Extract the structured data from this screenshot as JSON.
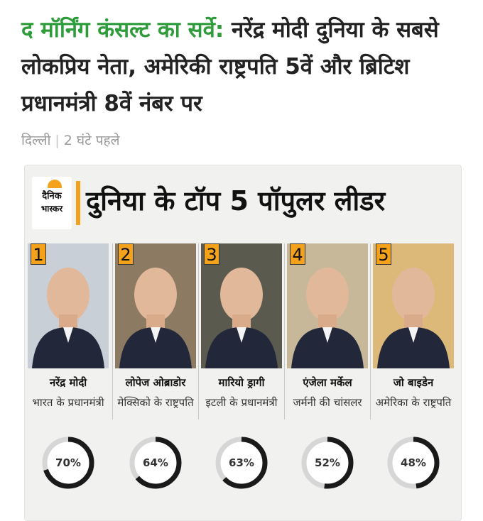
{
  "article": {
    "source": "द मॉर्निंग कंसल्ट का सर्वे:",
    "headline": "नरेंद्र मोदी दुनिया के सबसे लोकप्रिय नेता, अमेरिकी राष्ट्रपति 5वें और ब्रिटिश प्रधानमंत्री 8वें नंबर पर",
    "location": "दिल्ली",
    "time": "2 घंटे पहले"
  },
  "infographic": {
    "logo_line1": "दैनिक",
    "logo_line2": "भास्कर",
    "title": "दुनिया के टॉप 5 पॉपुलर लीडर",
    "leaders": [
      {
        "rank": "1",
        "name": "नरेंद्र मोदी",
        "post": "भारत के प्रधानमंत्री",
        "approval": 70,
        "approval_label": "70%",
        "bg": "#c9cfd6"
      },
      {
        "rank": "2",
        "name": "लोपेज ओब्राडोर",
        "post": "मेक्सिको के राष्ट्रपति",
        "approval": 64,
        "approval_label": "64%",
        "bg": "#8d7a63"
      },
      {
        "rank": "3",
        "name": "मारियो ड्रागी",
        "post": "इटली के प्रधानमंत्री",
        "approval": 63,
        "approval_label": "63%",
        "bg": "#5b5a4e"
      },
      {
        "rank": "4",
        "name": "एंजेला मर्केल",
        "post": "जर्मनी की चांसलर",
        "approval": 52,
        "approval_label": "52%",
        "bg": "#c8b89a"
      },
      {
        "rank": "5",
        "name": "जो बाइडेन",
        "post": "अमेरिका के राष्ट्रपति",
        "approval": 48,
        "approval_label": "48%",
        "bg": "#dcb978"
      }
    ]
  },
  "colors": {
    "source_green": "#2e9c3a",
    "accent_orange": "#f4a21c",
    "ring_dark": "#1a1a1a",
    "ring_light": "#d6d6d6"
  }
}
